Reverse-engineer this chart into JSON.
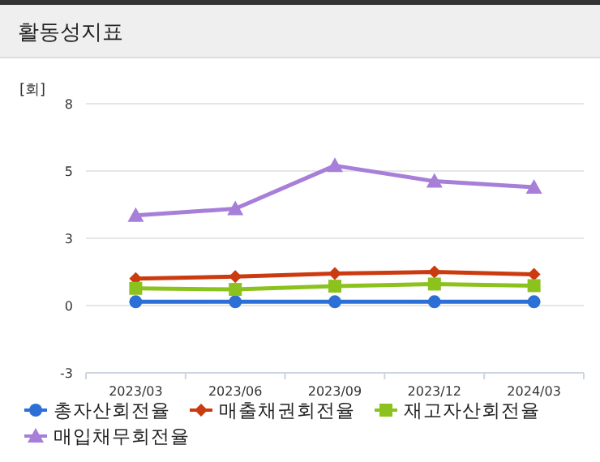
{
  "chart_data": {
    "type": "line",
    "title": "활동성지표",
    "ylabel": "[회]",
    "categories": [
      "2023/03",
      "2023/06",
      "2023/09",
      "2023/12",
      "2024/03"
    ],
    "series": [
      {
        "name": "총자산회전율",
        "color": "#2c6fd6",
        "marker": "circle",
        "values": [
          0.14,
          0.14,
          0.14,
          0.14,
          0.14
        ]
      },
      {
        "name": "매출채권회전율",
        "color": "#cc3a10",
        "marker": "diamond",
        "values": [
          1.0,
          1.08,
          1.19,
          1.25,
          1.16
        ]
      },
      {
        "name": "재고자산회전율",
        "color": "#8cc21e",
        "marker": "square",
        "values": [
          0.64,
          0.6,
          0.72,
          0.8,
          0.74
        ]
      },
      {
        "name": "매입채무회전율",
        "color": "#a77fd9",
        "marker": "triangle",
        "values": [
          3.35,
          3.6,
          5.2,
          4.62,
          4.4
        ]
      }
    ],
    "ylim": [
      -2.5,
      7.5
    ],
    "yticks": [
      {
        "value": -2.5,
        "label": "-3"
      },
      {
        "value": 0,
        "label": "0"
      },
      {
        "value": 2.5,
        "label": "3"
      },
      {
        "value": 5,
        "label": "5"
      },
      {
        "value": 7.5,
        "label": "8"
      }
    ],
    "grid": "y",
    "legend": "bottom"
  }
}
